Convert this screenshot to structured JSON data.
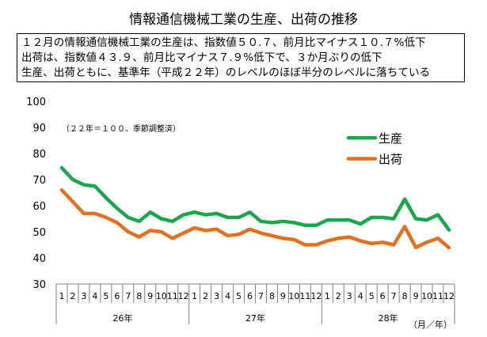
{
  "title": "情報通信機械工業の生産、出荷の推移",
  "summary": [
    "１２月の情報通信機械工業の生産は、指数値５０.７、前月比マイナス１０.７%低下",
    "出荷は、指数値４３.９、前月比マイナス７.９%低下で、３か月ぶりの低下",
    "生産、出荷ともに、基準年（平成２２年）のレベルのほぼ半分のレベルに落ちている"
  ],
  "chart_data": {
    "type": "line",
    "note": "（２２年＝１００、季節調整済）",
    "unit_label": "（月／年）",
    "ylim": [
      30,
      100
    ],
    "yticks": [
      30,
      40,
      50,
      60,
      70,
      80,
      90,
      100
    ],
    "months": [
      "1",
      "2",
      "3",
      "4",
      "5",
      "6",
      "7",
      "8",
      "9",
      "10",
      "11",
      "12",
      "1",
      "2",
      "3",
      "4",
      "5",
      "6",
      "7",
      "8",
      "9",
      "10",
      "11",
      "12",
      "1",
      "2",
      "3",
      "4",
      "5",
      "6",
      "7",
      "8",
      "9",
      "10",
      "11",
      "12"
    ],
    "years": [
      "26年",
      "27年",
      "28年"
    ],
    "series": [
      {
        "name": "生産",
        "color": "#1aa64a",
        "values": [
          74.5,
          70.0,
          68.0,
          67.5,
          63.0,
          59.0,
          55.5,
          54.0,
          57.5,
          55.0,
          54.0,
          56.5,
          57.5,
          56.5,
          57.0,
          55.5,
          55.5,
          57.5,
          54.0,
          53.5,
          54.0,
          53.5,
          52.5,
          52.5,
          54.5,
          54.5,
          54.5,
          53.0,
          55.5,
          55.5,
          55.0,
          62.5,
          55.0,
          54.5,
          56.5,
          50.7
        ]
      },
      {
        "name": "出荷",
        "color": "#e2701c",
        "values": [
          66.0,
          61.5,
          57.0,
          57.0,
          55.5,
          53.5,
          50.0,
          48.0,
          50.5,
          50.0,
          47.5,
          49.5,
          51.5,
          50.5,
          51.0,
          48.5,
          49.0,
          51.0,
          49.5,
          48.5,
          47.5,
          47.0,
          45.0,
          45.0,
          46.5,
          47.5,
          48.0,
          46.5,
          45.5,
          46.0,
          45.0,
          52.0,
          44.0,
          46.0,
          47.5,
          43.9
        ]
      }
    ]
  }
}
